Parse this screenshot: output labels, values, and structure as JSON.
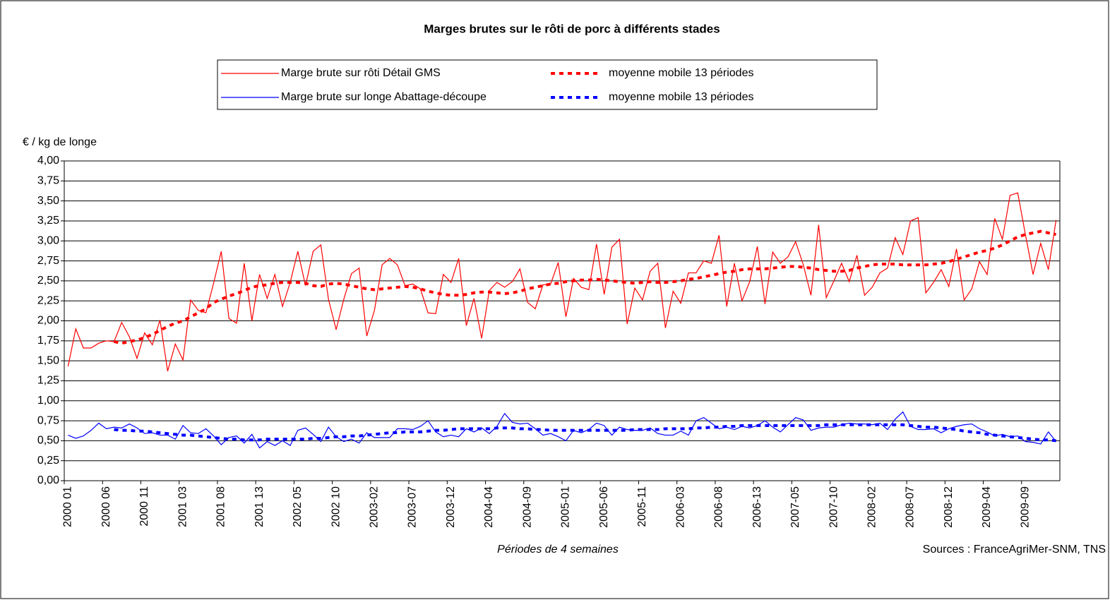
{
  "chart_data": {
    "type": "line",
    "title": "Marges brutes sur le rôti de porc à différents stades",
    "y_axis_label": "€ / kg de longe",
    "x_axis_label": "Périodes de 4 semaines",
    "source": "Sources : FranceAgriMer-SNM, TNS",
    "grid": true,
    "categories": [
      "2000 01",
      null,
      null,
      null,
      null,
      "2000 06",
      null,
      null,
      null,
      null,
      "2000 11",
      null,
      null,
      null,
      null,
      "2001 03",
      null,
      null,
      null,
      null,
      "2001 08",
      null,
      null,
      null,
      null,
      "2001 13",
      null,
      null,
      null,
      null,
      "2002 05",
      null,
      null,
      null,
      null,
      "2002 10",
      null,
      null,
      null,
      null,
      "2003-02",
      null,
      null,
      null,
      null,
      "2003-07",
      null,
      null,
      null,
      null,
      "2003-12",
      null,
      null,
      null,
      null,
      "2004-04",
      null,
      null,
      null,
      null,
      "2004-09",
      null,
      null,
      null,
      null,
      "2005-01",
      null,
      null,
      null,
      null,
      "2005-06",
      null,
      null,
      null,
      null,
      "2005-11",
      null,
      null,
      null,
      null,
      "2006-03",
      null,
      null,
      null,
      null,
      "2006-08",
      null,
      null,
      null,
      null,
      "2006-13",
      null,
      null,
      null,
      null,
      "2007-05",
      null,
      null,
      null,
      null,
      "2007-10",
      null,
      null,
      null,
      null,
      "2008-02",
      null,
      null,
      null,
      null,
      "2008-07",
      null,
      null,
      null,
      null,
      "2008-12",
      null,
      null,
      null,
      null,
      "2009-04",
      null,
      null,
      null,
      null,
      "2009-09",
      null,
      null,
      null,
      null
    ],
    "ylim": [
      0,
      4
    ],
    "yticks": [
      {
        "value": 0,
        "label": "0,00"
      },
      {
        "value": 0.25,
        "label": "0,25"
      },
      {
        "value": 0.5,
        "label": "0,50"
      },
      {
        "value": 0.75,
        "label": "0,75"
      },
      {
        "value": 1,
        "label": "1,00"
      },
      {
        "value": 1.25,
        "label": "1,25"
      },
      {
        "value": 1.5,
        "label": "1,50"
      },
      {
        "value": 1.75,
        "label": "1,75"
      },
      {
        "value": 2,
        "label": "2,00"
      },
      {
        "value": 2.25,
        "label": "2,25"
      },
      {
        "value": 2.5,
        "label": "2,50"
      },
      {
        "value": 2.75,
        "label": "2,75"
      },
      {
        "value": 3,
        "label": "3,00"
      },
      {
        "value": 3.25,
        "label": "3,25"
      },
      {
        "value": 3.5,
        "label": "3,50"
      },
      {
        "value": 3.75,
        "label": "3,75"
      },
      {
        "value": 4,
        "label": "4,00"
      }
    ],
    "series": [
      {
        "name": "Marge brute sur rôti Détail GMS",
        "color": "#ff0000",
        "style": "solid",
        "values": [
          1.43,
          1.9,
          1.66,
          1.66,
          1.72,
          1.75,
          1.74,
          1.98,
          1.8,
          1.53,
          1.85,
          1.7,
          2.01,
          1.37,
          1.71,
          1.51,
          2.26,
          2.13,
          2.1,
          2.47,
          2.87,
          2.03,
          1.97,
          2.72,
          2.0,
          2.58,
          2.28,
          2.58,
          2.18,
          2.48,
          2.87,
          2.44,
          2.87,
          2.95,
          2.27,
          1.89,
          2.27,
          2.59,
          2.66,
          1.81,
          2.13,
          2.7,
          2.78,
          2.7,
          2.44,
          2.46,
          2.4,
          2.1,
          2.09,
          2.58,
          2.48,
          2.78,
          1.94,
          2.28,
          1.78,
          2.38,
          2.48,
          2.42,
          2.49,
          2.65,
          2.23,
          2.15,
          2.45,
          2.46,
          2.73,
          2.05,
          2.53,
          2.42,
          2.39,
          2.96,
          2.33,
          2.92,
          3.02,
          1.96,
          2.41,
          2.26,
          2.62,
          2.72,
          1.91,
          2.37,
          2.22,
          2.6,
          2.6,
          2.75,
          2.72,
          3.07,
          2.18,
          2.72,
          2.25,
          2.49,
          2.93,
          2.21,
          2.86,
          2.72,
          2.8,
          2.99,
          2.7,
          2.32,
          3.2,
          2.29,
          2.5,
          2.72,
          2.49,
          2.82,
          2.32,
          2.42,
          2.6,
          2.66,
          3.04,
          2.83,
          3.25,
          3.29,
          2.35,
          2.48,
          2.64,
          2.43,
          2.9,
          2.26,
          2.4,
          2.74,
          2.58,
          3.28,
          3.02,
          3.57,
          3.6,
          3.08,
          2.58,
          2.97,
          2.64,
          3.26
        ]
      },
      {
        "name": "moyenne mobile 13 périodes",
        "color": "#ff0000",
        "style": "dotted",
        "values": [
          null,
          null,
          null,
          null,
          null,
          null,
          1.74,
          1.72,
          1.74,
          1.76,
          1.79,
          1.83,
          1.88,
          1.93,
          1.97,
          2.0,
          2.05,
          2.1,
          2.15,
          2.23,
          2.27,
          2.31,
          2.34,
          2.38,
          2.42,
          2.44,
          2.45,
          2.47,
          2.48,
          2.48,
          2.48,
          2.47,
          2.44,
          2.43,
          2.46,
          2.47,
          2.46,
          2.44,
          2.42,
          2.4,
          2.39,
          2.4,
          2.41,
          2.42,
          2.43,
          2.42,
          2.4,
          2.37,
          2.35,
          2.33,
          2.32,
          2.32,
          2.33,
          2.35,
          2.36,
          2.36,
          2.35,
          2.34,
          2.35,
          2.37,
          2.4,
          2.42,
          2.44,
          2.46,
          2.47,
          2.49,
          2.5,
          2.51,
          2.51,
          2.52,
          2.51,
          2.5,
          2.49,
          2.48,
          2.47,
          2.48,
          2.49,
          2.48,
          2.48,
          2.49,
          2.5,
          2.52,
          2.53,
          2.55,
          2.57,
          2.59,
          2.61,
          2.62,
          2.64,
          2.65,
          2.65,
          2.65,
          2.66,
          2.67,
          2.68,
          2.68,
          2.67,
          2.66,
          2.64,
          2.63,
          2.62,
          2.62,
          2.63,
          2.66,
          2.68,
          2.7,
          2.71,
          2.71,
          2.71,
          2.7,
          2.7,
          2.7,
          2.7,
          2.71,
          2.72,
          2.74,
          2.77,
          2.8,
          2.83,
          2.86,
          2.88,
          2.91,
          2.95,
          3.0,
          3.05,
          3.08,
          3.1,
          3.12,
          3.1,
          3.08
        ]
      },
      {
        "name": "Marge brute sur longe Abattage-découpe",
        "color": "#0000ff",
        "style": "solid",
        "values": [
          0.57,
          0.53,
          0.56,
          0.63,
          0.72,
          0.65,
          0.67,
          0.66,
          0.71,
          0.66,
          0.59,
          0.6,
          0.57,
          0.57,
          0.52,
          0.69,
          0.6,
          0.59,
          0.65,
          0.56,
          0.45,
          0.54,
          0.56,
          0.47,
          0.58,
          0.41,
          0.49,
          0.44,
          0.5,
          0.44,
          0.63,
          0.66,
          0.58,
          0.49,
          0.67,
          0.55,
          0.49,
          0.52,
          0.47,
          0.6,
          0.54,
          0.54,
          0.54,
          0.65,
          0.65,
          0.64,
          0.68,
          0.75,
          0.61,
          0.55,
          0.57,
          0.55,
          0.65,
          0.61,
          0.66,
          0.59,
          0.68,
          0.84,
          0.73,
          0.71,
          0.72,
          0.65,
          0.57,
          0.59,
          0.55,
          0.5,
          0.63,
          0.6,
          0.64,
          0.72,
          0.69,
          0.57,
          0.67,
          0.64,
          0.63,
          0.63,
          0.66,
          0.59,
          0.57,
          0.57,
          0.62,
          0.57,
          0.75,
          0.79,
          0.72,
          0.65,
          0.67,
          0.64,
          0.68,
          0.66,
          0.69,
          0.75,
          0.67,
          0.61,
          0.7,
          0.79,
          0.76,
          0.63,
          0.66,
          0.67,
          0.67,
          0.7,
          0.72,
          0.71,
          0.71,
          0.7,
          0.72,
          0.64,
          0.77,
          0.86,
          0.68,
          0.64,
          0.64,
          0.65,
          0.6,
          0.65,
          0.68,
          0.7,
          0.71,
          0.65,
          0.61,
          0.56,
          0.58,
          0.55,
          0.56,
          0.49,
          0.48,
          0.46,
          0.61,
          0.49
        ]
      },
      {
        "name": "moyenne mobile 13 périodes",
        "color": "#0000ff",
        "style": "dotted",
        "values": [
          null,
          null,
          null,
          null,
          null,
          null,
          0.64,
          0.63,
          0.63,
          0.62,
          0.62,
          0.61,
          0.6,
          0.59,
          0.58,
          0.57,
          0.57,
          0.56,
          0.55,
          0.54,
          0.53,
          0.52,
          0.52,
          0.51,
          0.51,
          0.51,
          0.52,
          0.52,
          0.52,
          0.52,
          0.52,
          0.52,
          0.53,
          0.53,
          0.54,
          0.55,
          0.55,
          0.56,
          0.56,
          0.57,
          0.58,
          0.59,
          0.6,
          0.6,
          0.61,
          0.61,
          0.61,
          0.62,
          0.63,
          0.63,
          0.64,
          0.65,
          0.65,
          0.65,
          0.65,
          0.65,
          0.66,
          0.66,
          0.66,
          0.65,
          0.65,
          0.64,
          0.64,
          0.63,
          0.63,
          0.63,
          0.63,
          0.63,
          0.63,
          0.63,
          0.63,
          0.63,
          0.63,
          0.63,
          0.64,
          0.64,
          0.64,
          0.64,
          0.65,
          0.65,
          0.65,
          0.65,
          0.66,
          0.66,
          0.67,
          0.67,
          0.68,
          0.68,
          0.69,
          0.69,
          0.69,
          0.69,
          0.69,
          0.69,
          0.69,
          0.69,
          0.69,
          0.69,
          0.69,
          0.7,
          0.7,
          0.7,
          0.7,
          0.7,
          0.7,
          0.7,
          0.7,
          0.7,
          0.7,
          0.7,
          0.69,
          0.68,
          0.67,
          0.67,
          0.66,
          0.65,
          0.64,
          0.62,
          0.61,
          0.6,
          0.58,
          0.57,
          0.56,
          0.55,
          0.54,
          0.53,
          0.52,
          0.51,
          0.51,
          0.5
        ]
      }
    ]
  }
}
